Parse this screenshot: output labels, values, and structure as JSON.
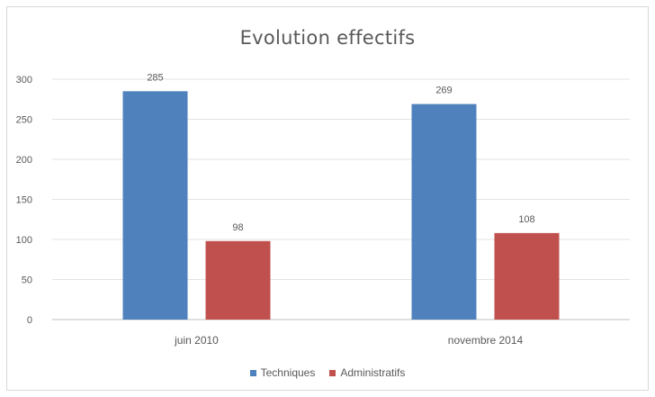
{
  "chart_data": {
    "type": "bar",
    "title": "Evolution  effectifs",
    "categories": [
      "juin 2010",
      "novembre 2014"
    ],
    "series": [
      {
        "name": "Techniques",
        "color": "#4f81bd",
        "values": [
          285,
          269
        ]
      },
      {
        "name": "Administratifs",
        "color": "#c0504d",
        "values": [
          98,
          108
        ]
      }
    ],
    "ylim": [
      0,
      300
    ],
    "yticks": [
      "0",
      "50",
      "100",
      "150",
      "200",
      "250",
      "300"
    ],
    "grid": true,
    "legend_position": "bottom",
    "data_labels": true
  }
}
